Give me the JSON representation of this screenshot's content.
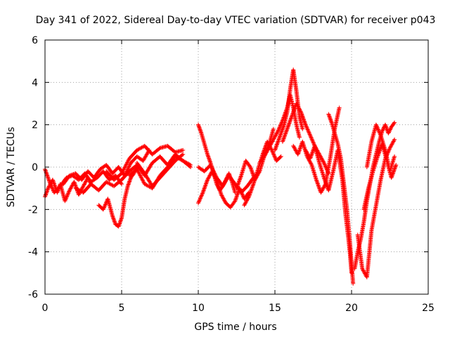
{
  "chart_data": {
    "type": "scatter",
    "title": "Day 341 of 2022, Sidereal Day-to-day VTEC variation (SDTVAR) for receiver p043",
    "xlabel": "GPS time / hours",
    "ylabel": "SDTVAR / TECUs",
    "xlim": [
      0,
      25
    ],
    "ylim": [
      -6,
      6
    ],
    "xticks": [
      0,
      5,
      10,
      15,
      20,
      25
    ],
    "yticks": [
      -6,
      -4,
      -2,
      0,
      2,
      4,
      6
    ],
    "grid": true,
    "marker": "+",
    "series": [
      {
        "name": "SDTVAR",
        "color": "#ff0000",
        "segments": [
          {
            "x": [
              0.0,
              0.2,
              0.5,
              0.8,
              1.0,
              1.3,
              1.6,
              1.9,
              2.2,
              2.5,
              2.8,
              3.0
            ],
            "y": [
              -1.4,
              -1.0,
              -0.6,
              -1.2,
              -0.8,
              -1.6,
              -1.1,
              -0.7,
              -1.3,
              -0.9,
              -0.5,
              -0.8
            ]
          },
          {
            "x": [
              0.0,
              0.3,
              0.6,
              1.0,
              1.4,
              1.8,
              2.2,
              2.6,
              3.0,
              3.4,
              3.8,
              4.2,
              4.6,
              5.0
            ],
            "y": [
              -0.1,
              -0.7,
              -1.2,
              -0.9,
              -0.5,
              -0.4,
              -0.6,
              -0.3,
              -0.7,
              -0.5,
              -0.2,
              -0.6,
              -0.4,
              -0.8
            ]
          },
          {
            "x": [
              1.2,
              1.6,
              2.0,
              2.4,
              2.8,
              3.2,
              3.6,
              4.0,
              4.4,
              4.8,
              5.2,
              5.6,
              6.0,
              6.4,
              6.8
            ],
            "y": [
              -0.8,
              -0.4,
              -0.3,
              -0.6,
              -0.2,
              -0.5,
              -0.1,
              0.1,
              -0.3,
              0.0,
              -0.4,
              0.2,
              0.5,
              0.3,
              0.8
            ]
          },
          {
            "x": [
              3.5,
              3.8,
              4.1,
              4.4,
              4.6,
              4.8,
              5.0,
              5.2,
              5.4,
              5.6,
              5.8,
              6.0
            ],
            "y": [
              -1.8,
              -2.0,
              -1.5,
              -2.3,
              -2.7,
              -2.8,
              -2.4,
              -1.5,
              -0.9,
              -0.5,
              -0.3,
              0.0
            ]
          },
          {
            "x": [
              2.0,
              2.5,
              3.0,
              3.5,
              4.0,
              4.5,
              5.0,
              5.5,
              6.0,
              6.5,
              7.0,
              7.5,
              8.0,
              8.5,
              9.0,
              9.5
            ],
            "y": [
              -1.0,
              -1.2,
              -0.8,
              -1.1,
              -0.7,
              -0.9,
              -0.6,
              -0.2,
              0.1,
              -0.4,
              0.2,
              0.5,
              0.1,
              0.6,
              0.3,
              0.0
            ]
          },
          {
            "x": [
              4.0,
              4.5,
              5.0,
              5.5,
              6.0,
              6.5,
              7.0,
              7.5,
              8.0,
              8.5,
              9.0
            ],
            "y": [
              -0.2,
              -0.6,
              -0.3,
              0.4,
              0.8,
              1.0,
              0.6,
              0.9,
              1.0,
              0.7,
              0.8
            ]
          },
          {
            "x": [
              5.5,
              6.0,
              6.5,
              7.0,
              7.5,
              8.0,
              8.5,
              9.0,
              9.5
            ],
            "y": [
              -0.4,
              -0.1,
              -0.8,
              -1.0,
              -0.4,
              0.0,
              0.5,
              0.3,
              0.1
            ]
          },
          {
            "x": [
              6.0,
              6.5,
              7.0,
              7.5,
              8.0,
              8.5,
              9.0
            ],
            "y": [
              0.2,
              -0.3,
              -0.9,
              -0.5,
              -0.1,
              0.3,
              0.6
            ]
          },
          {
            "x": [
              10.0,
              10.2,
              10.4,
              10.6,
              10.8,
              11.0,
              11.2,
              11.4,
              11.6,
              11.8,
              12.0,
              12.2,
              12.4
            ],
            "y": [
              2.0,
              1.6,
              1.1,
              0.6,
              0.2,
              -0.3,
              -0.8,
              -1.1,
              -0.9,
              -0.6,
              -0.3,
              -0.7,
              -1.2
            ]
          },
          {
            "x": [
              10.0,
              10.3,
              10.6,
              10.9,
              11.2,
              11.5,
              11.8,
              12.1,
              12.4,
              12.7,
              13.0,
              13.3
            ],
            "y": [
              -1.7,
              -1.2,
              -0.6,
              -0.2,
              -0.6,
              -1.3,
              -1.7,
              -1.9,
              -1.6,
              -1.0,
              -1.5,
              -1.2
            ]
          },
          {
            "x": [
              10.0,
              10.4,
              10.8,
              11.2,
              11.6,
              12.0,
              12.4,
              12.8,
              13.2,
              13.6,
              14.0
            ],
            "y": [
              0.0,
              -0.2,
              0.1,
              -0.5,
              -0.9,
              -0.4,
              -0.8,
              -1.2,
              -0.9,
              -0.5,
              -0.2
            ]
          },
          {
            "x": [
              12.5,
              12.8,
              13.1,
              13.4,
              13.7,
              14.0,
              14.3,
              14.6,
              14.9
            ],
            "y": [
              -1.0,
              -0.4,
              0.3,
              0.0,
              -0.6,
              -0.2,
              0.5,
              1.0,
              1.8
            ]
          },
          {
            "x": [
              13.0,
              13.3,
              13.6,
              13.9,
              14.2,
              14.5,
              14.8,
              15.1,
              15.4
            ],
            "y": [
              -1.8,
              -1.4,
              -0.8,
              -0.1,
              0.6,
              1.2,
              0.8,
              0.3,
              0.5
            ]
          },
          {
            "x": [
              14.0,
              14.3,
              14.6,
              14.9,
              15.2,
              15.5,
              15.8,
              16.0,
              16.2,
              16.4,
              16.6
            ],
            "y": [
              0.2,
              0.5,
              0.9,
              1.3,
              1.7,
              2.2,
              2.8,
              3.4,
              2.8,
              2.0,
              1.4
            ]
          },
          {
            "x": [
              15.0,
              15.3,
              15.6,
              15.8,
              16.0,
              16.2,
              16.4,
              16.6,
              16.8
            ],
            "y": [
              0.8,
              1.4,
              2.0,
              2.6,
              3.7,
              4.6,
              3.6,
              2.4,
              1.8
            ]
          },
          {
            "x": [
              15.5,
              15.8,
              16.1,
              16.4,
              16.7,
              17.0,
              17.3,
              17.6,
              17.9,
              18.2,
              18.5
            ],
            "y": [
              1.2,
              1.8,
              2.4,
              3.0,
              2.6,
              2.0,
              1.5,
              1.0,
              0.6,
              0.2,
              -0.3
            ]
          },
          {
            "x": [
              16.2,
              16.5,
              16.8,
              17.1,
              17.4,
              17.7,
              18.0,
              18.3,
              18.6,
              18.9,
              19.2
            ],
            "y": [
              1.0,
              0.6,
              1.2,
              0.5,
              0.1,
              -0.6,
              -1.2,
              -0.8,
              0.4,
              1.8,
              2.8
            ]
          },
          {
            "x": [
              17.0,
              17.3,
              17.6,
              17.9,
              18.2,
              18.5,
              18.8,
              19.1,
              19.4,
              19.6,
              19.8,
              19.9,
              20.0
            ],
            "y": [
              0.8,
              0.4,
              1.0,
              0.2,
              -0.5,
              -1.1,
              -0.2,
              0.8,
              -0.6,
              -2.2,
              -3.4,
              -4.1,
              -5.0
            ]
          },
          {
            "x": [
              18.5,
              18.7,
              18.9,
              19.1,
              19.3,
              19.5,
              19.7,
              19.9,
              20.1
            ],
            "y": [
              2.5,
              2.1,
              1.6,
              1.1,
              0.4,
              -0.8,
              -2.0,
              -3.6,
              -5.5
            ]
          },
          {
            "x": [
              20.2,
              20.4,
              20.6,
              20.8,
              21.0,
              21.2,
              21.4,
              21.6,
              21.8,
              22.0,
              22.2,
              22.4,
              22.6,
              22.8
            ],
            "y": [
              -4.8,
              -4.0,
              -3.4,
              -2.6,
              -1.6,
              -0.8,
              0.0,
              0.6,
              1.2,
              1.7,
              2.0,
              1.6,
              1.9,
              2.1
            ]
          },
          {
            "x": [
              20.4,
              20.7,
              21.0,
              21.3,
              21.6,
              21.9,
              22.2,
              22.5,
              22.8
            ],
            "y": [
              -3.2,
              -4.8,
              -5.2,
              -3.0,
              -1.8,
              -0.6,
              0.4,
              0.9,
              1.3
            ]
          },
          {
            "x": [
              20.8,
              21.1,
              21.4,
              21.7,
              22.0,
              22.3,
              22.6,
              22.9
            ],
            "y": [
              -2.0,
              -1.0,
              -0.2,
              0.5,
              1.1,
              0.3,
              -0.5,
              0.1
            ]
          },
          {
            "x": [
              21.0,
              21.3,
              21.6,
              21.9,
              22.2,
              22.5,
              22.8
            ],
            "y": [
              0.0,
              1.2,
              2.0,
              1.5,
              0.8,
              -0.2,
              0.5
            ]
          }
        ]
      }
    ]
  }
}
